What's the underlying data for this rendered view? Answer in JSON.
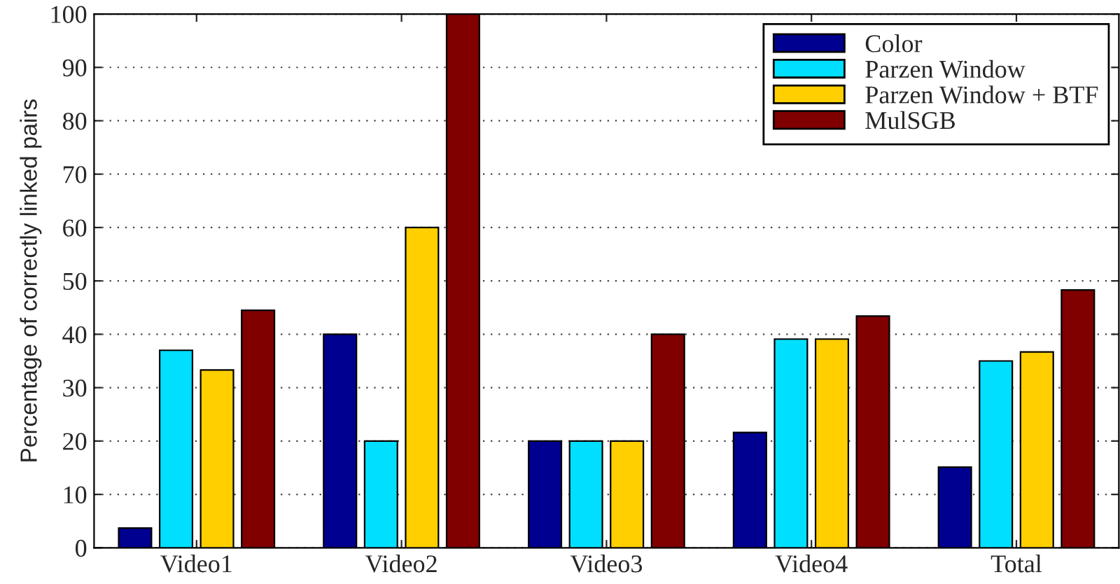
{
  "chart_data": {
    "type": "bar",
    "ylabel": "Percentage of correctly linked pairs",
    "categories": [
      "Video1",
      "Video2",
      "Video3",
      "Video4",
      "Total"
    ],
    "series": [
      {
        "name": "Color",
        "color": "#000090",
        "values": [
          3.7,
          40,
          20,
          21.6,
          15.1
        ]
      },
      {
        "name": "Parzen Window",
        "color": "#00dfff",
        "values": [
          37.0,
          20,
          20,
          39.1,
          35.0
        ]
      },
      {
        "name": "Parzen Window + BTF",
        "color": "#ffcf00",
        "values": [
          33.3,
          60,
          20,
          39.1,
          36.7
        ]
      },
      {
        "name": "MulSGB",
        "color": "#800000",
        "values": [
          44.5,
          100,
          40,
          43.4,
          48.3
        ]
      }
    ],
    "ylim": [
      0,
      100
    ],
    "yticks": [
      0,
      10,
      20,
      30,
      40,
      50,
      60,
      70,
      80,
      90,
      100
    ],
    "grid": "y",
    "legend": "top right"
  }
}
